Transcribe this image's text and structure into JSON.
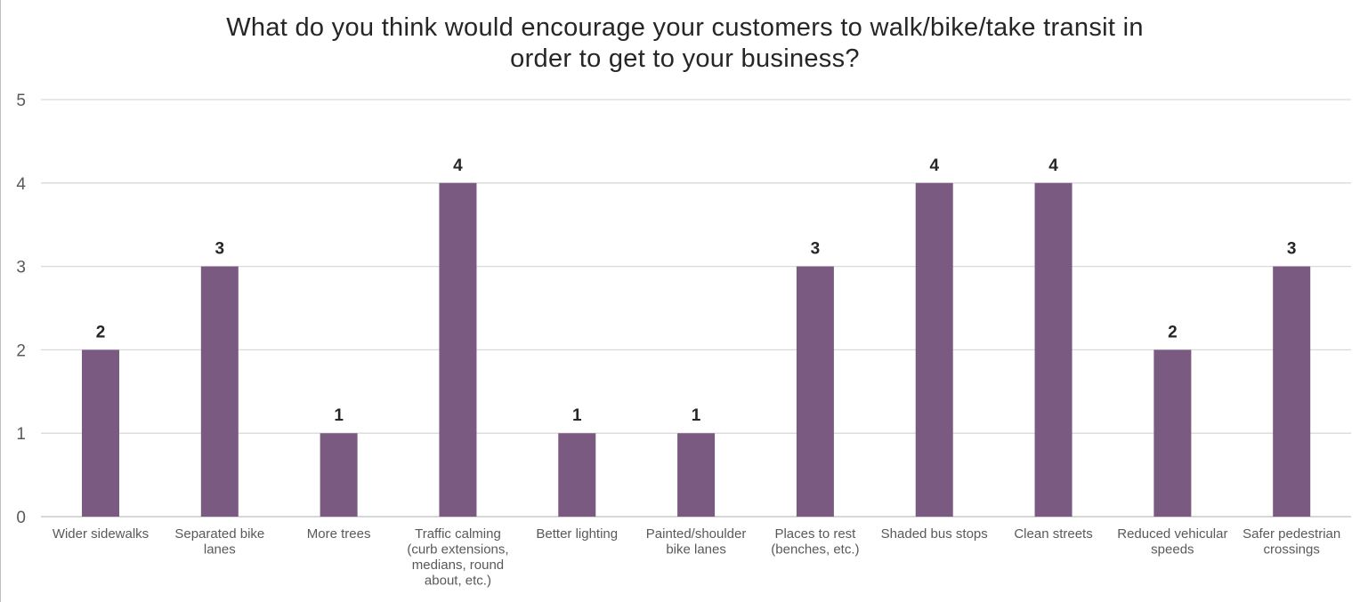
{
  "chart_data": {
    "type": "bar",
    "title_lines": [
      "What do you think would encourage your customers to walk/bike/take transit in",
      "order to get to your business?"
    ],
    "categories": [
      [
        "Wider sidewalks"
      ],
      [
        "Separated bike",
        "lanes"
      ],
      [
        "More trees"
      ],
      [
        "Traffic calming",
        "(curb extensions,",
        "medians, round",
        "about, etc.)"
      ],
      [
        "Better lighting"
      ],
      [
        "Painted/shoulder",
        "bike lanes"
      ],
      [
        "Places to rest",
        "(benches, etc.)"
      ],
      [
        "Shaded bus stops"
      ],
      [
        "Clean streets"
      ],
      [
        "Reduced vehicular",
        "speeds"
      ],
      [
        "Safer pedestrian",
        "crossings"
      ]
    ],
    "values": [
      2,
      3,
      1,
      4,
      1,
      1,
      3,
      4,
      4,
      2,
      3
    ],
    "data_labels": [
      "2",
      "3",
      "1",
      "4",
      "1",
      "1",
      "3",
      "4",
      "4",
      "2",
      "3"
    ],
    "yticks": [
      "0",
      "1",
      "2",
      "3",
      "4",
      "5"
    ],
    "ylim": [
      0,
      5
    ],
    "xlabel": "",
    "ylabel": "",
    "grid": true,
    "legend": "none",
    "bar_color": "#7b5a82",
    "grid_color": "#d9d9d9"
  }
}
